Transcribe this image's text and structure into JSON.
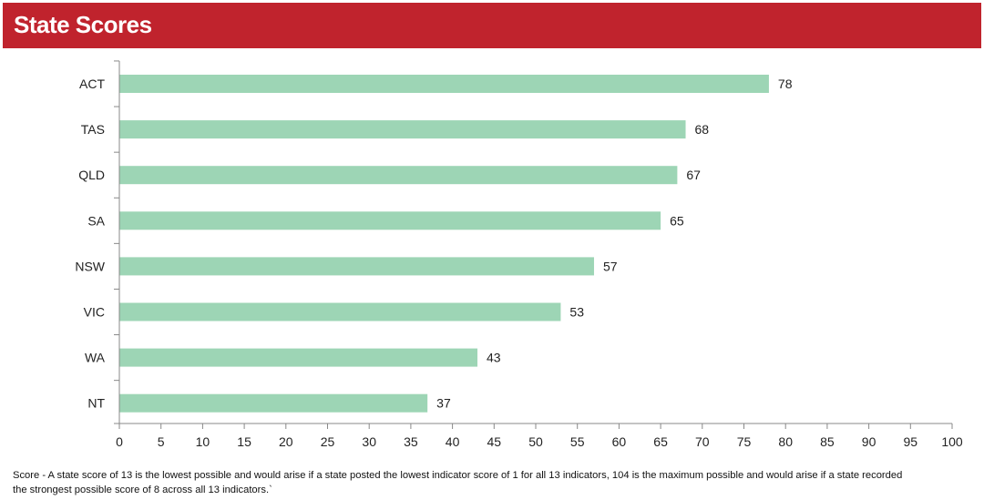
{
  "header": {
    "title": "State Scores"
  },
  "chart_data": {
    "type": "bar",
    "orientation": "horizontal",
    "categories": [
      "ACT",
      "TAS",
      "QLD",
      "SA",
      "NSW",
      "VIC",
      "WA",
      "NT"
    ],
    "values": [
      78,
      68,
      67,
      65,
      57,
      53,
      43,
      37
    ],
    "xlim": [
      0,
      100
    ],
    "xticks": [
      0,
      5,
      10,
      15,
      20,
      25,
      30,
      35,
      40,
      45,
      50,
      55,
      60,
      65,
      70,
      75,
      80,
      85,
      90,
      95,
      100
    ],
    "bar_color": "#9dd5b5",
    "grid": false
  },
  "footnote": {
    "line1": "Score  - A state score of 13 is the lowest possible and would arise if a state posted the lowest indicator score of 1 for all 13 indicators, 104 is the maximum possible and would arise if a state recorded",
    "line2": "the strongest possible score of 8 across all 13 indicators.`"
  }
}
